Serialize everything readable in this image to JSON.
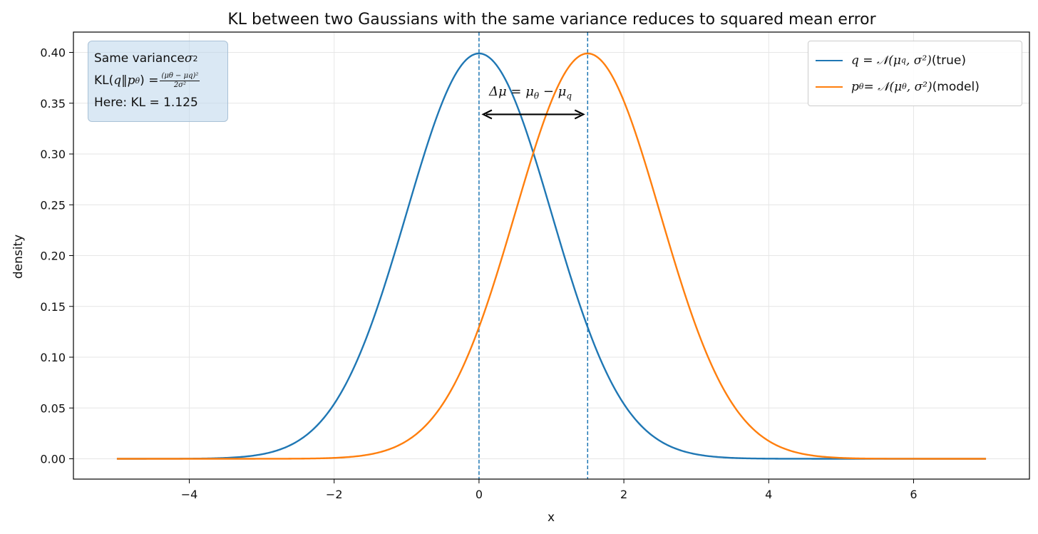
{
  "chart_data": {
    "type": "line",
    "title": "KL between two Gaussians with the same variance reduces to squared mean error",
    "xlabel": "x",
    "ylabel": "density",
    "xlim": [
      -5.6,
      7.6
    ],
    "ylim": [
      -0.02,
      0.42
    ],
    "xticks": [
      -4,
      -2,
      0,
      2,
      4,
      6
    ],
    "xtick_labels": [
      "−4",
      "−2",
      "0",
      "2",
      "4",
      "6"
    ],
    "yticks": [
      0.0,
      0.05,
      0.1,
      0.15,
      0.2,
      0.25,
      0.3,
      0.35,
      0.4
    ],
    "ytick_labels": [
      "0.00",
      "0.05",
      "0.10",
      "0.15",
      "0.20",
      "0.25",
      "0.30",
      "0.35",
      "0.40"
    ],
    "grid": true,
    "legend_position": "upper-right",
    "x_range": [
      -5,
      7
    ],
    "series": [
      {
        "name": "q = 𝒩(μ_q, σ²) (true)",
        "mean": 0.0,
        "sigma": 1.0,
        "color": "#1f77b4"
      },
      {
        "name": "p_θ = 𝒩(μ_θ, σ²) (model)",
        "mean": 1.5,
        "sigma": 1.0,
        "color": "#ff7f0e"
      }
    ],
    "vlines": [
      0.0,
      1.5
    ],
    "arrow": {
      "y": 0.339,
      "x_start": 0.0,
      "x_end": 1.5
    }
  },
  "annotation": {
    "line1_text": "Same variance ",
    "line1_math": "σ",
    "line1_sup": "2",
    "line2_prefix": "KL(",
    "line2_math": "q‖p",
    "line2_sub": "θ",
    "line2_eq": ") = ",
    "line2_num": "(μθ − μq)²",
    "line2_den": "2σ²",
    "line3": "Here: KL = 1.125"
  },
  "legend": {
    "item1_math": "q = 𝒩(μ",
    "item1_sub": "q",
    "item1_rest": ", σ²)",
    "item1_label": " (true)",
    "item2_math": "p",
    "item2_sub": "θ",
    "item2_mid": " = 𝒩(μ",
    "item2_sub2": "θ",
    "item2_rest": ", σ²)",
    "item2_label": " (model)"
  },
  "delta_mu_label": {
    "prefix": "Δμ = μ",
    "sub1": "θ",
    "mid": " − μ",
    "sub2": "q"
  },
  "colors": {
    "q": "#1f77b4",
    "p": "#ff7f0e"
  }
}
